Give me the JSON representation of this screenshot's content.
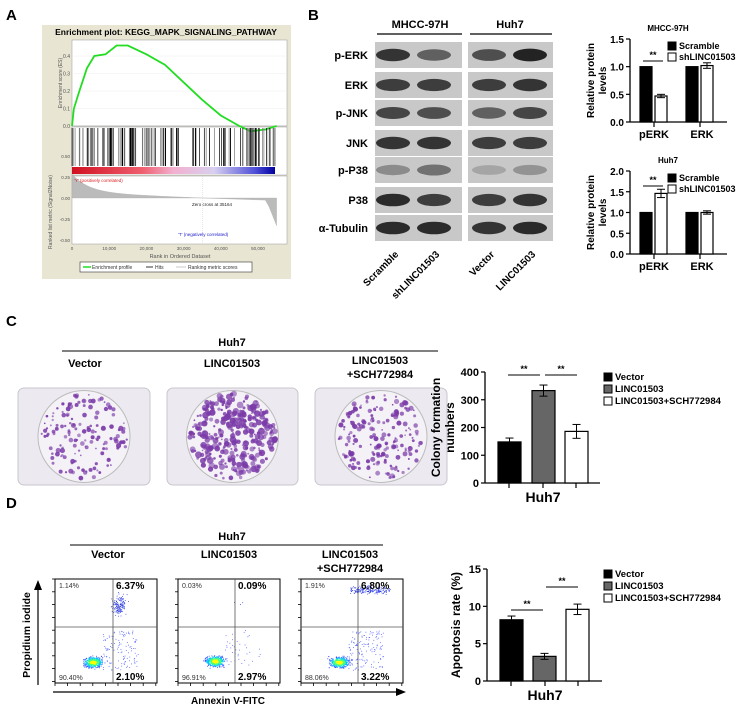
{
  "panels": {
    "A": {
      "label": "A"
    },
    "B": {
      "label": "B"
    },
    "C": {
      "label": "C"
    },
    "D": {
      "label": "D"
    }
  },
  "gsea": {
    "title": "Enrichment plot: KEGG_MAPK_SIGNALING_PATHWAY",
    "es_ylabel": "Enrichment score (ES)",
    "metric_ylabel": "Ranked list metric (Signal2Noise)",
    "xlabel": "Rank in Ordered Dataset",
    "pos_label": "'Y' (positively correlated)",
    "neg_label": "'T' (negatively correlated)",
    "zero_cross": "Zero cross at 35164",
    "es_ticks": [
      "0.4",
      "0.3",
      "0.2",
      "0.1",
      "0.0"
    ],
    "metric_ticks": [
      "0.50",
      "0.25",
      "0.00",
      "-0.25",
      "-0.50"
    ],
    "x_ticks": [
      "0",
      "10,000",
      "20,000",
      "30,000",
      "40,000",
      "50,000"
    ],
    "legend": [
      "Enrichment profile",
      "Hits",
      "Ranking metric scores"
    ],
    "colors": {
      "profile": "#22dd22",
      "background": "#e8e5d2"
    }
  },
  "blot": {
    "groups": [
      "MHCC-97H",
      "Huh7"
    ],
    "rows": [
      "p-ERK",
      "ERK",
      "p-JNK",
      "JNK",
      "p-P38",
      "P38",
      "α-Tubulin"
    ],
    "lanes": [
      "Scramble",
      "shLINC01503",
      "Vector",
      "LINC01503"
    ]
  },
  "colony": {
    "group": "Huh7",
    "columns": [
      "Vector",
      "LINC01503",
      "LINC01503",
      "+SCH772984"
    ],
    "plate_color": "#7a3aa8"
  },
  "flow": {
    "group": "Huh7",
    "columns": [
      "Vector",
      "LINC01503",
      "LINC01503",
      "+SCH772984"
    ],
    "ylabel": "Propidium iodide",
    "xlabel": "Annexin V-FITC",
    "quadrants": [
      {
        "ul": "1.14%",
        "ur": "6.37%",
        "ll": "90.40%",
        "lr": "2.10%"
      },
      {
        "ul": "0.03%",
        "ur": "0.09%",
        "ll": "96.91%",
        "lr": "2.97%"
      },
      {
        "ul": "1.91%",
        "ur": "6.80%",
        "ll": "88.06%",
        "lr": "3.22%"
      }
    ]
  },
  "chart_data": [
    {
      "type": "line",
      "title": "Enrichment plot: KEGG_MAPK_SIGNALING_PATHWAY",
      "xlabel": "Rank in Ordered Dataset",
      "ylabel": "Enrichment score (ES)",
      "xlim": [
        0,
        55000
      ],
      "ylim": [
        -0.05,
        0.48
      ],
      "series": [
        {
          "name": "Enrichment profile",
          "x": [
            0,
            500,
            2000,
            4000,
            6000,
            9000,
            12000,
            15000,
            20000,
            25000,
            30000,
            35000,
            40000,
            45000,
            48000,
            52000,
            55000
          ],
          "y": [
            0,
            0.1,
            0.2,
            0.33,
            0.4,
            0.41,
            0.46,
            0.46,
            0.41,
            0.35,
            0.25,
            0.15,
            0.06,
            0.0,
            -0.03,
            -0.02,
            0.0
          ]
        }
      ]
    },
    {
      "type": "bar",
      "title": "MHCC-97H",
      "ylabel": "Relative protein levels",
      "categories": [
        "pERK",
        "ERK"
      ],
      "ylim": [
        0,
        1.5
      ],
      "yticks": [
        "0.0",
        "0.5",
        "1.0",
        "1.5"
      ],
      "legend": "top-right",
      "series": [
        {
          "name": "Scramble",
          "values": [
            1.0,
            1.0
          ],
          "errors": [
            0,
            0
          ],
          "color": "#000000"
        },
        {
          "name": "shLINC01503",
          "values": [
            0.47,
            1.02
          ],
          "errors": [
            0.03,
            0.05
          ],
          "color": "#ffffff"
        }
      ],
      "annotations": [
        "**"
      ]
    },
    {
      "type": "bar",
      "title": "Huh7",
      "ylabel": "Relative protein levels",
      "categories": [
        "pERK",
        "ERK"
      ],
      "ylim": [
        0,
        2.0
      ],
      "yticks": [
        "0.0",
        "0.5",
        "1.0",
        "1.5",
        "2.0"
      ],
      "legend": "top-right",
      "series": [
        {
          "name": "Scramble",
          "values": [
            1.0,
            1.0
          ],
          "errors": [
            0,
            0
          ],
          "color": "#000000"
        },
        {
          "name": "shLINC01503",
          "values": [
            1.46,
            1.0
          ],
          "errors": [
            0.1,
            0.04
          ],
          "color": "#ffffff"
        }
      ],
      "annotations": [
        "**"
      ]
    },
    {
      "type": "bar",
      "ylabel": "Colony formation numbers",
      "xlabel": "Huh7",
      "ylim": [
        0,
        400
      ],
      "yticks": [
        "0",
        "100",
        "200",
        "300",
        "400"
      ],
      "legend": "right",
      "series": [
        {
          "name": "Vector",
          "values": [
            148
          ],
          "errors": [
            14
          ],
          "color": "#000000"
        },
        {
          "name": "LINC01503",
          "values": [
            333
          ],
          "errors": [
            20
          ],
          "color": "#666666"
        },
        {
          "name": "LINC01503+SCH772984",
          "values": [
            186
          ],
          "errors": [
            25
          ],
          "color": "#ffffff"
        }
      ],
      "annotations": [
        "**",
        "**"
      ]
    },
    {
      "type": "bar",
      "ylabel": "Apoptosis rate (%)",
      "xlabel": "Huh7",
      "ylim": [
        0,
        15
      ],
      "yticks": [
        "0",
        "5",
        "10",
        "15"
      ],
      "legend": "right",
      "series": [
        {
          "name": "Vector",
          "values": [
            8.2
          ],
          "errors": [
            0.5
          ],
          "color": "#000000"
        },
        {
          "name": "LINC01503",
          "values": [
            3.3
          ],
          "errors": [
            0.4
          ],
          "color": "#666666"
        },
        {
          "name": "LINC01503+SCH772984",
          "values": [
            9.6
          ],
          "errors": [
            0.7
          ],
          "color": "#ffffff"
        }
      ],
      "annotations": [
        "**",
        "**"
      ]
    }
  ]
}
